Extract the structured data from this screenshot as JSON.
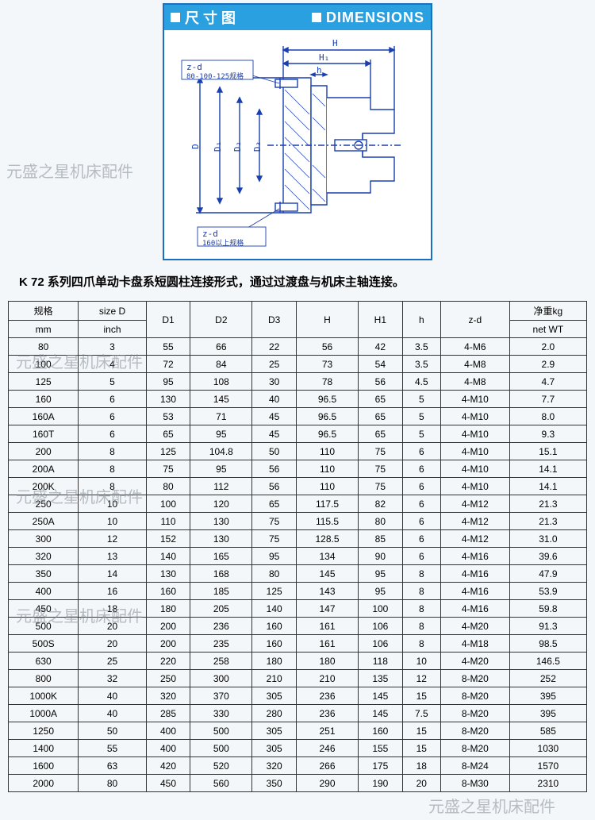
{
  "diagram": {
    "header_cn": "尺 寸 图",
    "header_en": "DIMENSIONS",
    "labels": {
      "H": "H",
      "H1": "H₁",
      "h": "h",
      "zd_top": "z-d",
      "note_top": "80-100-125规格",
      "D": "D",
      "D1": "D₁",
      "D2": "D₂",
      "D3": "D₃",
      "zd_bottom": "z-d",
      "note_bottom": "160以上规格"
    }
  },
  "caption": "K 72 系列四爪单动卡盘系短圆柱连接形式，通过过渡盘与机床主轴连接。",
  "watermark": "元盛之星机床配件",
  "table": {
    "headers": {
      "spec": "规格",
      "sizeD": "size D",
      "mm": "mm",
      "inch": "inch",
      "D1": "D1",
      "D2": "D2",
      "D3": "D3",
      "H": "H",
      "H1": "H1",
      "h": "h",
      "zd": "z-d",
      "wt1": "净重kg",
      "wt2": "net WT"
    },
    "rows": [
      [
        "80",
        "3",
        "55",
        "66",
        "22",
        "56",
        "42",
        "3.5",
        "4-M6",
        "2.0"
      ],
      [
        "100",
        "4",
        "72",
        "84",
        "25",
        "73",
        "54",
        "3.5",
        "4-M8",
        "2.9"
      ],
      [
        "125",
        "5",
        "95",
        "108",
        "30",
        "78",
        "56",
        "4.5",
        "4-M8",
        "4.7"
      ],
      [
        "160",
        "6",
        "130",
        "145",
        "40",
        "96.5",
        "65",
        "5",
        "4-M10",
        "7.7"
      ],
      [
        "160A",
        "6",
        "53",
        "71",
        "45",
        "96.5",
        "65",
        "5",
        "4-M10",
        "8.0"
      ],
      [
        "160T",
        "6",
        "65",
        "95",
        "45",
        "96.5",
        "65",
        "5",
        "4-M10",
        "9.3"
      ],
      [
        "200",
        "8",
        "125",
        "104.8",
        "50",
        "110",
        "75",
        "6",
        "4-M10",
        "15.1"
      ],
      [
        "200A",
        "8",
        "75",
        "95",
        "56",
        "110",
        "75",
        "6",
        "4-M10",
        "14.1"
      ],
      [
        "200K",
        "8",
        "80",
        "112",
        "56",
        "110",
        "75",
        "6",
        "4-M10",
        "14.1"
      ],
      [
        "250",
        "10",
        "100",
        "120",
        "65",
        "117.5",
        "82",
        "6",
        "4-M12",
        "21.3"
      ],
      [
        "250A",
        "10",
        "110",
        "130",
        "75",
        "115.5",
        "80",
        "6",
        "4-M12",
        "21.3"
      ],
      [
        "300",
        "12",
        "152",
        "130",
        "75",
        "128.5",
        "85",
        "6",
        "4-M12",
        "31.0"
      ],
      [
        "320",
        "13",
        "140",
        "165",
        "95",
        "134",
        "90",
        "6",
        "4-M16",
        "39.6"
      ],
      [
        "350",
        "14",
        "130",
        "168",
        "80",
        "145",
        "95",
        "8",
        "4-M16",
        "47.9"
      ],
      [
        "400",
        "16",
        "160",
        "185",
        "125",
        "143",
        "95",
        "8",
        "4-M16",
        "53.9"
      ],
      [
        "450",
        "18",
        "180",
        "205",
        "140",
        "147",
        "100",
        "8",
        "4-M16",
        "59.8"
      ],
      [
        "500",
        "20",
        "200",
        "236",
        "160",
        "161",
        "106",
        "8",
        "4-M20",
        "91.3"
      ],
      [
        "500S",
        "20",
        "200",
        "235",
        "160",
        "161",
        "106",
        "8",
        "4-M18",
        "98.5"
      ],
      [
        "630",
        "25",
        "220",
        "258",
        "180",
        "180",
        "118",
        "10",
        "4-M20",
        "146.5"
      ],
      [
        "800",
        "32",
        "250",
        "300",
        "210",
        "210",
        "135",
        "12",
        "8-M20",
        "252"
      ],
      [
        "1000K",
        "40",
        "320",
        "370",
        "305",
        "236",
        "145",
        "15",
        "8-M20",
        "395"
      ],
      [
        "1000A",
        "40",
        "285",
        "330",
        "280",
        "236",
        "145",
        "7.5",
        "8-M20",
        "395"
      ],
      [
        "1250",
        "50",
        "400",
        "500",
        "305",
        "251",
        "160",
        "15",
        "8-M20",
        "585"
      ],
      [
        "1400",
        "55",
        "400",
        "500",
        "305",
        "246",
        "155",
        "15",
        "8-M20",
        "1030"
      ],
      [
        "1600",
        "63",
        "420",
        "520",
        "320",
        "266",
        "175",
        "18",
        "8-M24",
        "1570"
      ],
      [
        "2000",
        "80",
        "450",
        "560",
        "350",
        "290",
        "190",
        "20",
        "8-M30",
        "2310"
      ]
    ]
  },
  "colors": {
    "header_bg": "#2aa0e0",
    "border": "#1a6fc0",
    "ink": "#1a3fb0",
    "page_bg": "#f4f7f9",
    "table_border": "#333333"
  }
}
